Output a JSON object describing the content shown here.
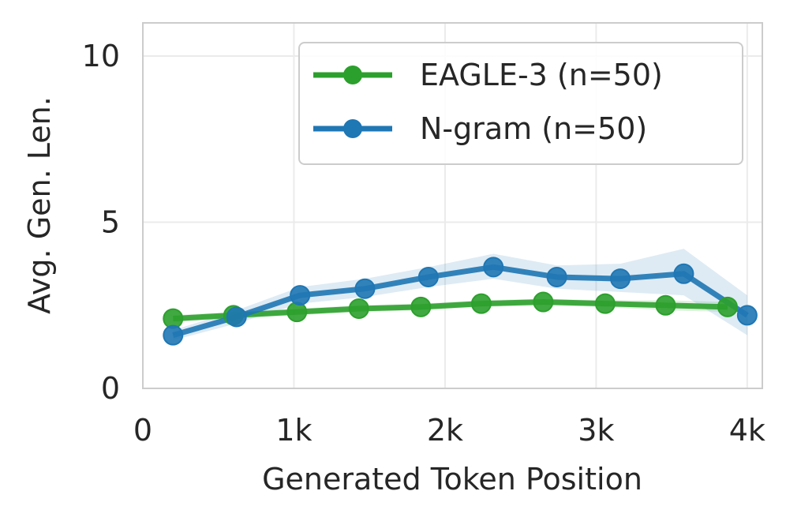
{
  "chart_data": {
    "type": "line",
    "title": "",
    "xlabel": "Generated Token Position",
    "ylabel": "Avg. Gen. Len.",
    "xlim": [
      0,
      4100
    ],
    "ylim": [
      0,
      11
    ],
    "x_ticks": [
      0,
      1000,
      2000,
      3000,
      4000
    ],
    "x_tick_labels": [
      "0",
      "1k",
      "2k",
      "3k",
      "4k"
    ],
    "y_ticks": [
      0,
      5,
      10
    ],
    "y_tick_labels": [
      "0",
      "5",
      "10"
    ],
    "grid": true,
    "legend_position": "top-right",
    "series": [
      {
        "name": "EAGLE-3 (n=50)",
        "color": "#2ca02c",
        "x": [
          200,
          600,
          1020,
          1430,
          1840,
          2240,
          2650,
          3060,
          3460,
          3870
        ],
        "y": [
          2.1,
          2.2,
          2.3,
          2.4,
          2.45,
          2.55,
          2.6,
          2.55,
          2.5,
          2.45
        ],
        "band_lower": [
          2.0,
          2.1,
          2.2,
          2.3,
          2.35,
          2.45,
          2.5,
          2.45,
          2.35,
          2.3
        ],
        "band_upper": [
          2.2,
          2.3,
          2.4,
          2.5,
          2.55,
          2.65,
          2.7,
          2.65,
          2.65,
          2.6
        ]
      },
      {
        "name": "N-gram (n=50)",
        "color": "#1f77b4",
        "x": [
          200,
          620,
          1040,
          1470,
          1890,
          2320,
          2740,
          3160,
          3580,
          4000
        ],
        "y": [
          1.6,
          2.15,
          2.8,
          3.0,
          3.35,
          3.65,
          3.35,
          3.3,
          3.45,
          2.2
        ],
        "band_lower": [
          1.45,
          1.95,
          2.55,
          2.75,
          3.05,
          3.3,
          3.0,
          2.9,
          2.8,
          1.6
        ],
        "band_upper": [
          1.75,
          2.35,
          3.05,
          3.3,
          3.65,
          4.05,
          3.7,
          3.75,
          4.2,
          2.8
        ]
      }
    ]
  }
}
